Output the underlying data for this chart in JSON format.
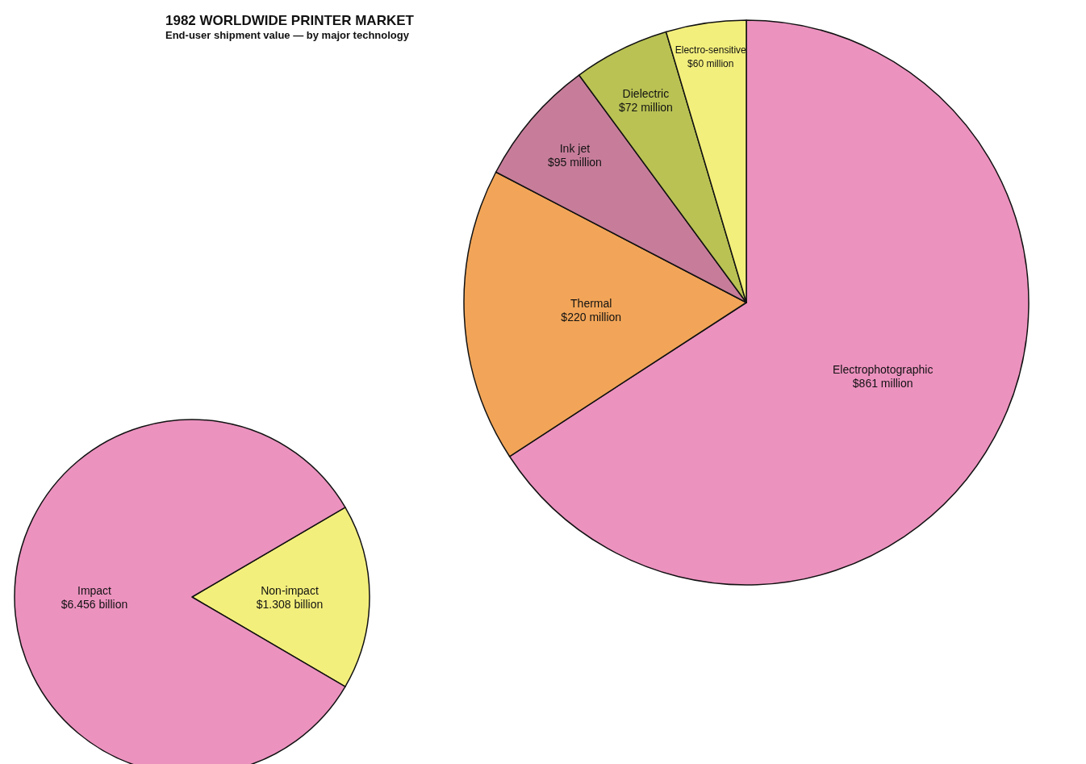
{
  "chart_data": [
    {
      "type": "pie",
      "title": "1982 WORLDWIDE PRINTER MARKET",
      "subtitle": "End-user shipment value — by major technology",
      "categories": [
        "Non-impact",
        "Impact"
      ],
      "values": [
        1.308,
        6.456
      ],
      "value_labels": [
        "$1.308 billion",
        "$6.456 billion"
      ],
      "colors": [
        "#f3ef7c",
        "#ec92bf"
      ]
    },
    {
      "type": "pie",
      "categories": [
        "Electrophotographic",
        "Thermal",
        "Ink jet",
        "Dielectric",
        "Electro-sensitive"
      ],
      "values": [
        861,
        220,
        95,
        72,
        60
      ],
      "value_labels": [
        "$861 million",
        "$220 million",
        "$95 million",
        "$72 million",
        "$60 million"
      ],
      "colors": [
        "#ec92bf",
        "#f2a558",
        "#c77d9a",
        "#b9c253",
        "#f3ef7c"
      ]
    }
  ]
}
